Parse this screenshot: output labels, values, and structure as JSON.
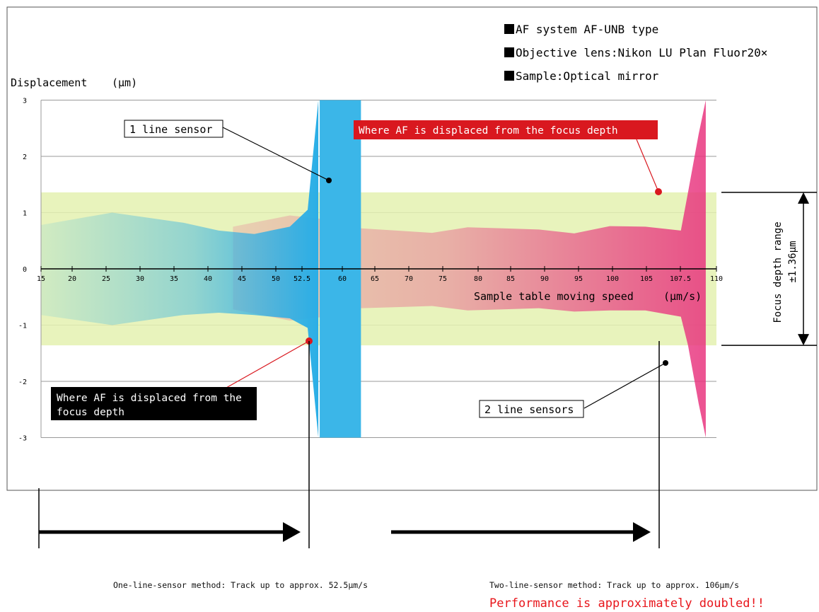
{
  "chart_data": {
    "type": "area",
    "ylabel": "Displacement",
    "ylabel_unit": "(μm)",
    "xlabel": "Sample table moving speed",
    "xlabel_unit": "(μm/s)",
    "x_ticks": [
      "15",
      "20",
      "25",
      "30",
      "35",
      "40",
      "45",
      "50",
      "52.5",
      "55",
      "60",
      "65",
      "70",
      "75",
      "80",
      "85",
      "90",
      "95",
      "100",
      "105",
      "107.5",
      "110"
    ],
    "y_ticks": [
      3,
      2,
      1,
      0,
      -1,
      -2,
      -3
    ],
    "ylim": [
      -3,
      3
    ],
    "focus_depth": {
      "upper": 1.36,
      "lower": -1.36,
      "label": "Focus depth range",
      "value_label": "±1.36μm"
    },
    "series": [
      {
        "name": "1 line sensor",
        "x": [
          15,
          25,
          35,
          40,
          45,
          50,
          52.5,
          54
        ],
        "upper": [
          0.78,
          1.0,
          0.82,
          0.68,
          0.62,
          0.75,
          1.05,
          3.0
        ],
        "lower": [
          -0.82,
          -1.0,
          -0.82,
          -0.78,
          -0.82,
          -0.88,
          -1.05,
          -3.0
        ],
        "color": "#2aaee6"
      },
      {
        "name": "2 line sensors",
        "x": [
          42,
          50,
          55,
          60,
          65,
          70,
          75,
          80,
          85,
          90,
          95,
          100,
          105,
          106,
          107.5,
          108.5
        ],
        "upper": [
          0.75,
          0.95,
          0.88,
          0.72,
          0.68,
          0.64,
          0.74,
          0.72,
          0.7,
          0.63,
          0.76,
          0.75,
          0.68,
          1.36,
          2.4,
          3.0
        ],
        "lower": [
          -0.72,
          -0.92,
          -0.85,
          -0.7,
          -0.68,
          -0.66,
          -0.74,
          -0.72,
          -0.7,
          -0.76,
          -0.74,
          -0.74,
          -0.85,
          -1.36,
          -2.4,
          -3.0
        ],
        "color": "#e8347e"
      }
    ],
    "annotations": {
      "one_line_label": "1 line sensor",
      "two_line_label": "2 line sensors",
      "displaced_red": "Where AF is displaced from the focus depth",
      "displaced_black_1": "Where AF is displaced from the",
      "displaced_black_2": "focus depth"
    }
  },
  "info": [
    "AF system AF-UNB type",
    "Objective lens:Nikon LU Plan Fluor20×",
    "Sample:Optical mirror"
  ],
  "summary": {
    "one_line": "One-line-sensor method: Track up to approx. 52.5μm/s",
    "two_line": "Two-line-sensor method: Track up to approx. 106μm/s",
    "highlight": "Performance is approximately doubled!!"
  },
  "colors": {
    "blue": "#2aaee6",
    "pink": "#e8347e",
    "focus_band": "#e4f1b0",
    "red_marker": "#d9181f",
    "highlight_text": "#e8151b"
  }
}
